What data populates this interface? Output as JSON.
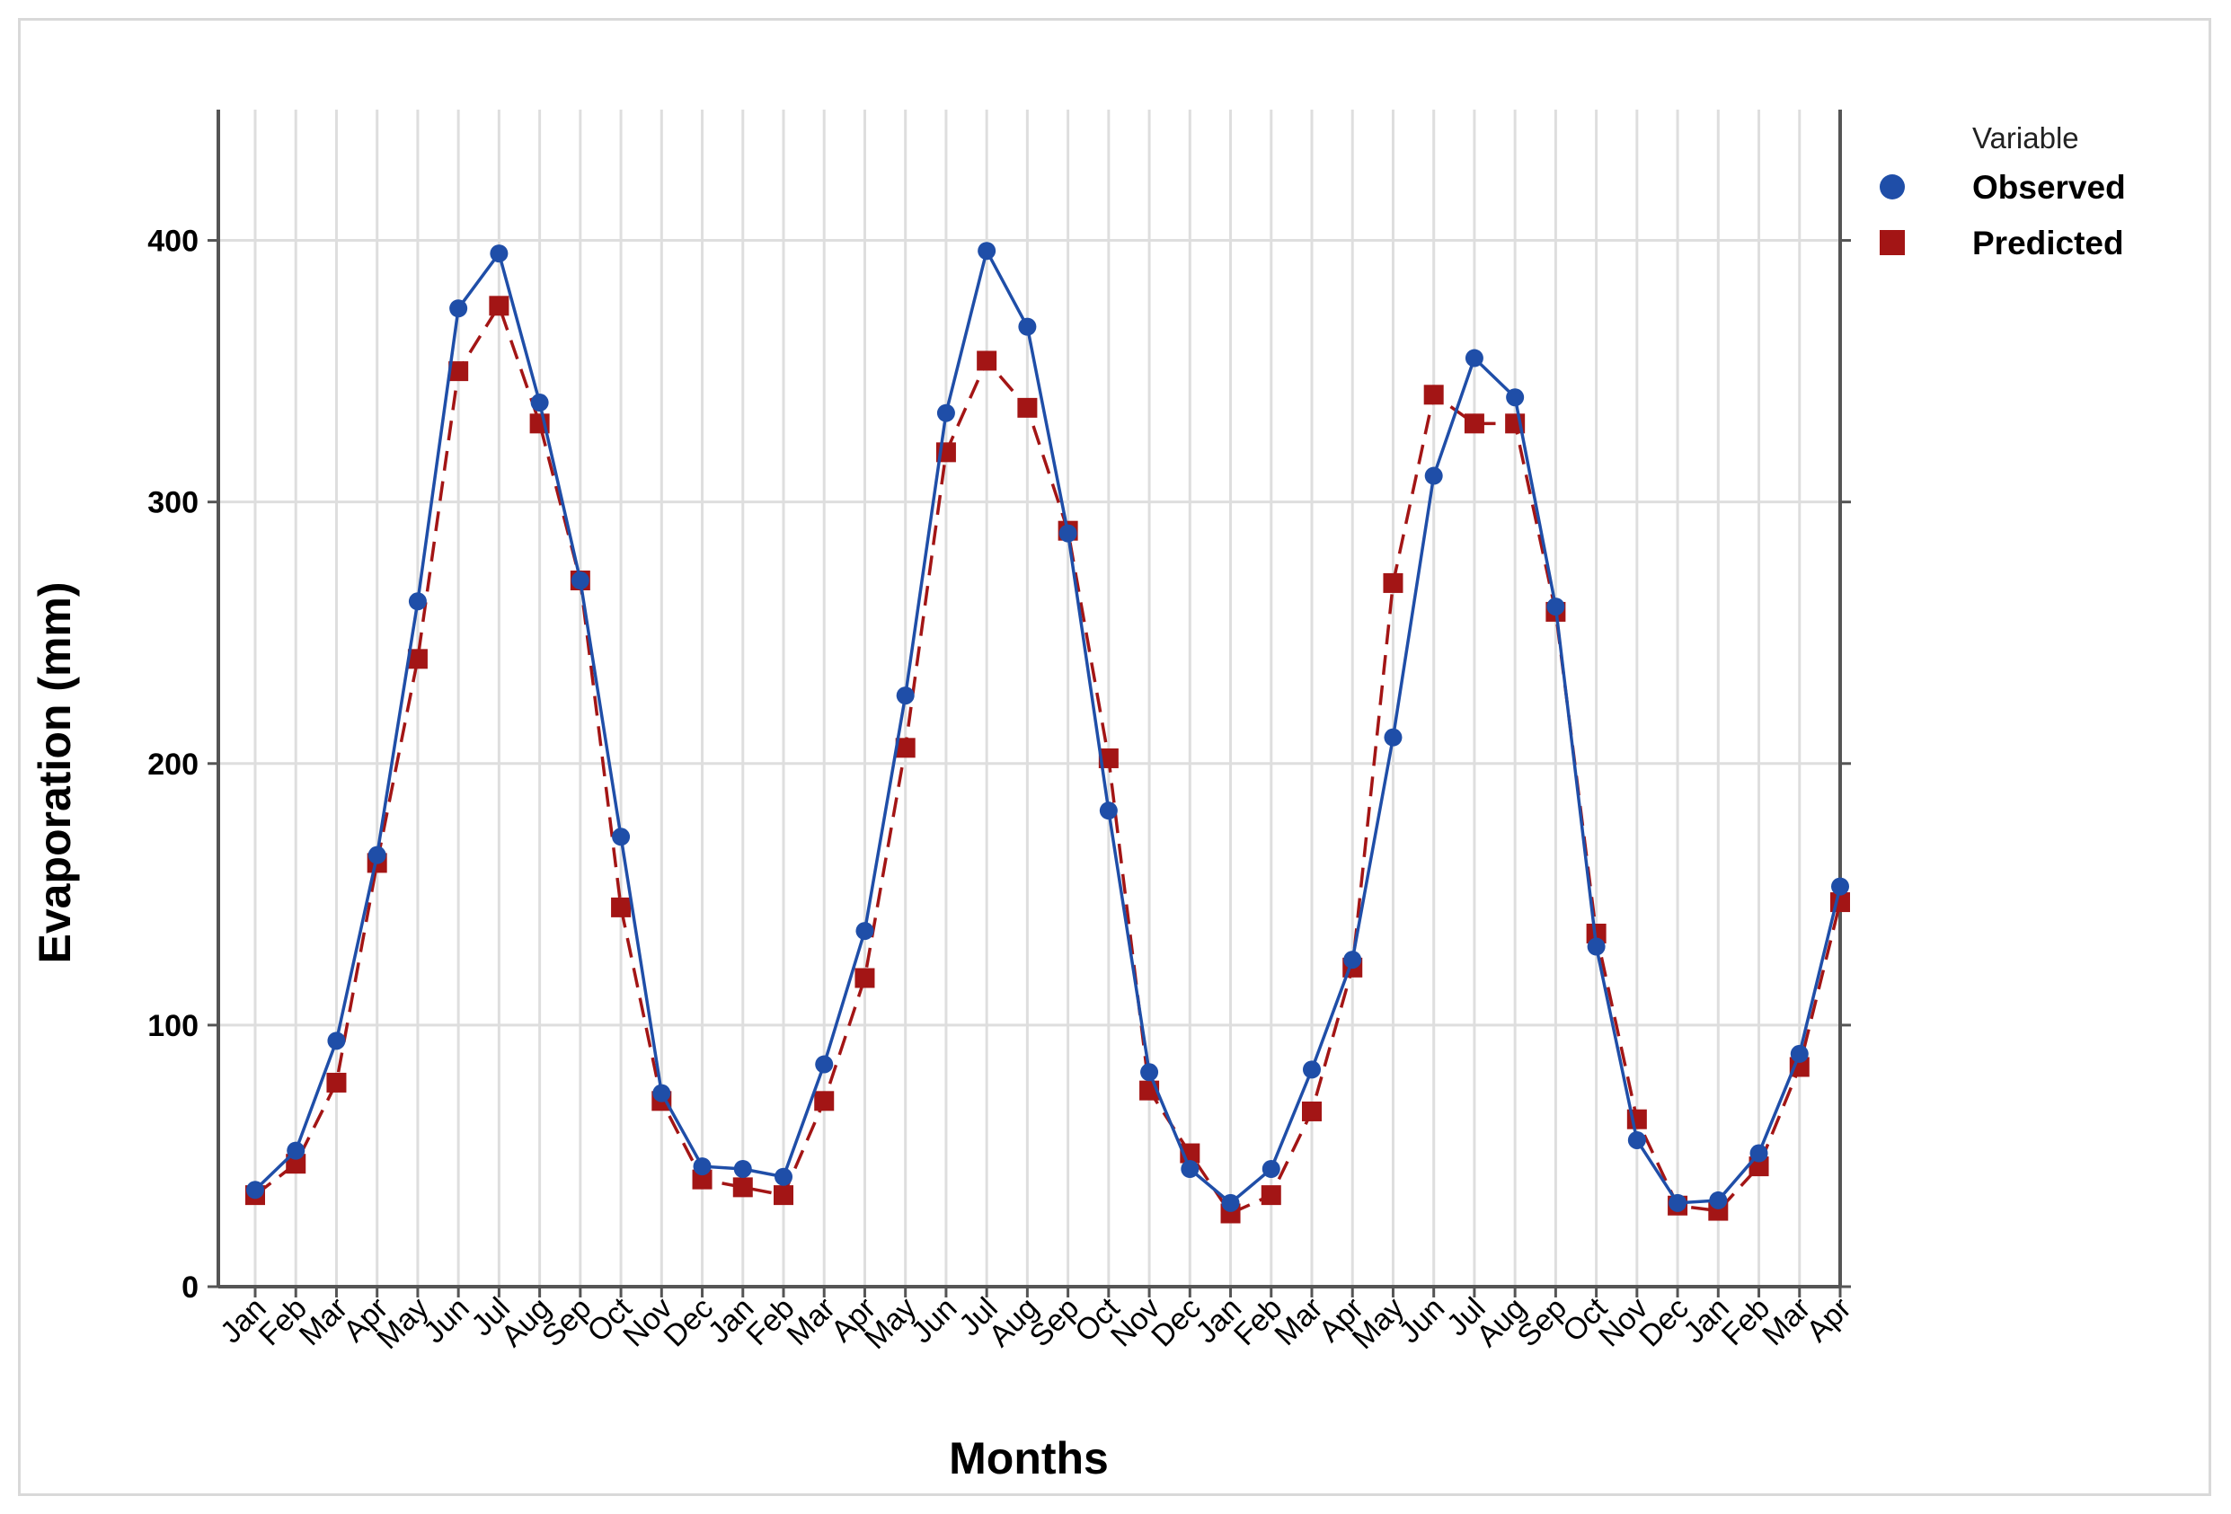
{
  "chart_data": {
    "type": "line",
    "title": "",
    "xlabel": "Months",
    "ylabel": "Evaporation (mm)",
    "categories": [
      "Jan",
      "Feb",
      "Mar",
      "Apr",
      "May",
      "Jun",
      "Jul",
      "Aug",
      "Sep",
      "Oct",
      "Nov",
      "Dec",
      "Jan",
      "Feb",
      "Mar",
      "Apr",
      "May",
      "Jun",
      "Jul",
      "Aug",
      "Sep",
      "Oct",
      "Nov",
      "Dec",
      "Jan",
      "Feb",
      "Mar",
      "Apr",
      "May",
      "Jun",
      "Jul",
      "Aug",
      "Sep",
      "Oct",
      "Nov",
      "Dec",
      "Jan",
      "Feb",
      "Mar",
      "Apr"
    ],
    "ylim": [
      0,
      450
    ],
    "yticks": [
      0,
      100,
      200,
      300,
      400
    ],
    "grid": true,
    "legend": {
      "title": "Variable",
      "position": "top-right"
    },
    "series": [
      {
        "name": "Observed",
        "color": "#1f4ea8",
        "marker": "circle",
        "line": "solid",
        "values": [
          37,
          52,
          94,
          165,
          262,
          374,
          395,
          338,
          270,
          172,
          74,
          46,
          45,
          42,
          85,
          136,
          226,
          334,
          396,
          367,
          288,
          182,
          82,
          45,
          32,
          45,
          83,
          125,
          210,
          310,
          355,
          340,
          260,
          130,
          56,
          32,
          33,
          51,
          89,
          153
        ]
      },
      {
        "name": "Predicted",
        "color": "#a31515",
        "marker": "square",
        "line": "dashed",
        "values": [
          35,
          47,
          78,
          162,
          240,
          350,
          375,
          330,
          270,
          145,
          71,
          41,
          38,
          35,
          71,
          118,
          206,
          319,
          354,
          336,
          289,
          202,
          75,
          51,
          28,
          35,
          67,
          122,
          269,
          341,
          330,
          330,
          258,
          135,
          64,
          31,
          29,
          46,
          84,
          147
        ]
      }
    ]
  }
}
